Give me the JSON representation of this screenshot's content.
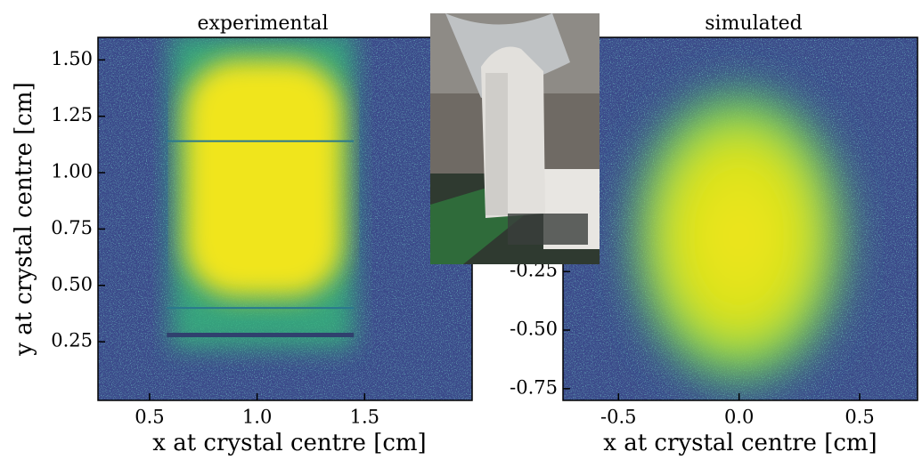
{
  "chart_data": [
    {
      "type": "heatmap",
      "title": "experimental",
      "xlabel": "x at crystal centre [cm]",
      "ylabel": "y at crystal centre [cm]",
      "xlim": [
        0.26,
        2.0
      ],
      "ylim": [
        -0.01,
        1.6
      ],
      "xticks": [
        0.5,
        {
          "value": 1.0,
          "label": "1.0"
        },
        1.5
      ],
      "yticks": [
        0.25,
        {
          "value": 0.5,
          "label": "0.50"
        },
        0.75,
        {
          "value": 1.0,
          "label": "1.00"
        },
        1.25,
        {
          "value": 1.5,
          "label": "1.50"
        }
      ]
    },
    {
      "type": "heatmap",
      "title": "simulated",
      "xlabel": "x at crystal centre [cm]",
      "xlim": [
        -0.73,
        0.74
      ],
      "ylim": [
        -0.8,
        0.75
      ],
      "xticks": [
        -0.5,
        {
          "value": 0.0,
          "label": "0.0"
        },
        0.5
      ],
      "yticks": [
        -0.75,
        {
          "value": -0.5,
          "label": "-0.50"
        },
        -0.25
      ]
    }
  ]
}
